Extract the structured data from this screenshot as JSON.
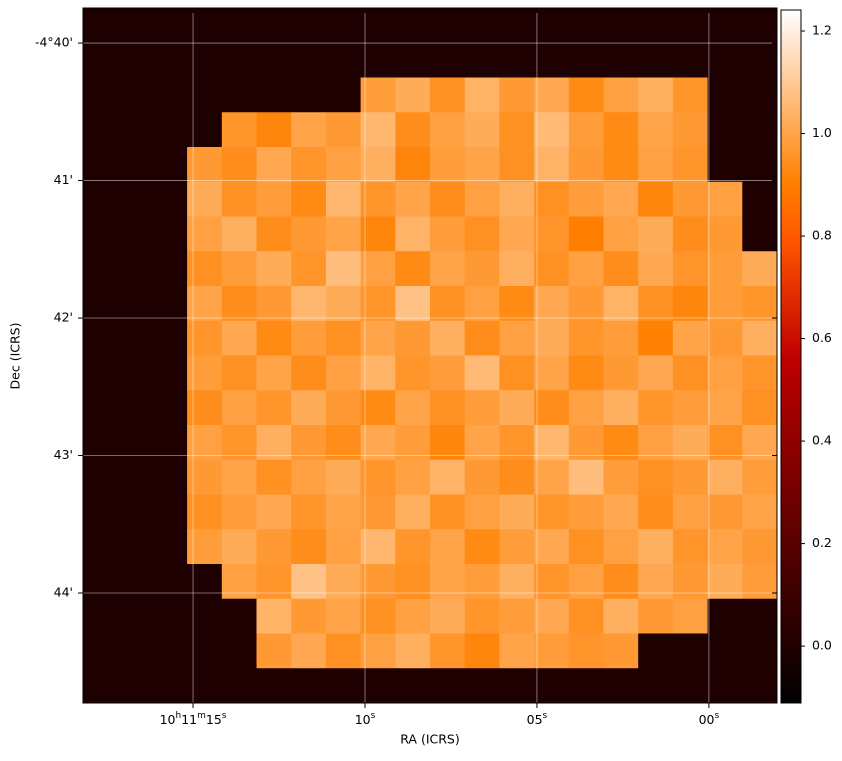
{
  "chart_data": {
    "type": "heatmap",
    "colormap": "gist_heat",
    "x_label": "RA (ICRS)",
    "y_label": "Dec (ICRS)",
    "xlim": [
      18.2,
      -1.98
    ],
    "xticks": [
      {
        "value": 15,
        "label": "10h11m15s"
      },
      {
        "value": 10,
        "label": "10s"
      },
      {
        "value": 5,
        "label": "05s"
      },
      {
        "value": 0,
        "label": "00s"
      }
    ],
    "ylim": [
      39.745,
      44.8
    ],
    "yticks": [
      {
        "value": 40,
        "label": "-4°40'"
      },
      {
        "value": 41,
        "label": "41'"
      },
      {
        "value": 42,
        "label": "42'"
      },
      {
        "value": 43,
        "label": "43'"
      },
      {
        "value": 44,
        "label": "44'"
      }
    ],
    "grid": true,
    "clim": [
      -0.111,
      1.241
    ],
    "cbticks": [
      {
        "value": 0,
        "label": "0.0"
      },
      0.2,
      0.4,
      0.6,
      0.8,
      {
        "value": 1,
        "label": "1.0"
      },
      1.2
    ],
    "z": [
      [
        0,
        0,
        0,
        0,
        0,
        0,
        0,
        0,
        0,
        0,
        0,
        0,
        0,
        0,
        0,
        0,
        0,
        0,
        0,
        0
      ],
      [
        0,
        0,
        0,
        0,
        0,
        0,
        0,
        0,
        0,
        0,
        0,
        0,
        0,
        0,
        0,
        0,
        0,
        0,
        0,
        0
      ],
      [
        0,
        0,
        0,
        0,
        0,
        0,
        0,
        0,
        0.98,
        1.02,
        0.95,
        1.04,
        0.97,
        1.01,
        0.93,
        0.99,
        1.03,
        0.96,
        0,
        0
      ],
      [
        0,
        0,
        0,
        0,
        0.96,
        0.92,
        1.0,
        0.97,
        1.05,
        0.94,
        0.99,
        1.02,
        0.95,
        1.06,
        0.98,
        0.93,
        1.0,
        0.97,
        0,
        0
      ],
      [
        0,
        0,
        0,
        0.97,
        0.94,
        1.01,
        0.96,
        0.99,
        1.03,
        0.92,
        0.98,
        1.0,
        0.95,
        1.04,
        0.97,
        0.93,
        0.99,
        0.96,
        0,
        0
      ],
      [
        0,
        0,
        0,
        1.02,
        0.95,
        0.98,
        0.93,
        1.05,
        0.96,
        1.0,
        0.94,
        0.99,
        1.03,
        0.95,
        0.98,
        1.01,
        0.92,
        0.97,
        0.99,
        0
      ],
      [
        0,
        0,
        0,
        0.99,
        1.03,
        0.94,
        0.97,
        1.0,
        0.92,
        1.04,
        0.98,
        0.95,
        1.01,
        0.96,
        0.9,
        0.99,
        1.02,
        0.94,
        0.97,
        0
      ],
      [
        0,
        0,
        0,
        0.95,
        0.98,
        1.02,
        0.96,
        1.07,
        0.99,
        0.93,
        1.0,
        0.97,
        1.03,
        0.95,
        0.99,
        0.94,
        1.01,
        0.96,
        0.98,
        1.02
      ],
      [
        0,
        0,
        0,
        1.0,
        0.94,
        0.97,
        1.05,
        1.02,
        0.96,
        1.08,
        0.95,
        0.99,
        0.93,
        1.01,
        0.97,
        1.04,
        0.95,
        0.92,
        0.98,
        0.96
      ],
      [
        0,
        0,
        0,
        0.96,
        1.01,
        0.93,
        0.98,
        0.95,
        1.0,
        0.97,
        1.03,
        0.94,
        0.99,
        1.02,
        0.96,
        0.98,
        0.91,
        1.0,
        0.97,
        1.03
      ],
      [
        0,
        0,
        0,
        0.98,
        0.95,
        1.0,
        0.94,
        0.99,
        1.04,
        0.96,
        0.98,
        1.06,
        0.95,
        1.0,
        0.93,
        0.97,
        1.01,
        0.95,
        0.99,
        0.96
      ],
      [
        0,
        0,
        0,
        0.94,
        0.99,
        0.96,
        1.02,
        0.97,
        0.93,
        1.0,
        0.95,
        0.98,
        1.02,
        0.94,
        0.99,
        1.03,
        0.96,
        0.98,
        1.0,
        0.95
      ],
      [
        0,
        0,
        0,
        0.99,
        0.96,
        1.03,
        0.97,
        0.94,
        1.01,
        0.98,
        0.92,
        1.0,
        0.96,
        1.05,
        0.97,
        0.93,
        0.99,
        1.02,
        0.95,
        1.01
      ],
      [
        0,
        0,
        0,
        0.97,
        1.0,
        0.95,
        0.99,
        1.02,
        0.96,
        0.99,
        1.04,
        0.97,
        0.94,
        1.0,
        1.07,
        0.98,
        0.95,
        0.97,
        1.03,
        0.98
      ],
      [
        0,
        0,
        0,
        0.95,
        0.98,
        1.01,
        0.96,
        1.0,
        0.97,
        1.03,
        0.95,
        0.99,
        1.02,
        0.96,
        0.98,
        1.01,
        0.94,
        0.99,
        0.97,
        1.0
      ],
      [
        0,
        0,
        0,
        0.98,
        1.02,
        0.97,
        0.94,
        0.99,
        1.05,
        0.96,
        1.0,
        0.93,
        0.98,
        1.01,
        0.95,
        0.99,
        1.03,
        0.96,
        1.0,
        0.97
      ],
      [
        0,
        0,
        0,
        0,
        0.99,
        0.96,
        1.08,
        1.02,
        0.97,
        0.95,
        1.0,
        0.98,
        1.03,
        0.96,
        0.99,
        0.94,
        1.01,
        0.97,
        1.02,
        0.98
      ],
      [
        0,
        0,
        0,
        0,
        0,
        1.04,
        0.97,
        1.0,
        0.95,
        0.99,
        1.02,
        0.96,
        0.98,
        1.01,
        0.95,
        1.03,
        0.97,
        0.99,
        0,
        0
      ],
      [
        0,
        0,
        0,
        0,
        0,
        0.97,
        1.01,
        0.95,
        0.99,
        1.03,
        0.96,
        0.92,
        1.0,
        0.98,
        0.96,
        0.97,
        0,
        0,
        0,
        0
      ],
      [
        0,
        0,
        0,
        0,
        0,
        0,
        0,
        0,
        0,
        0,
        0,
        0,
        0,
        0,
        0,
        0,
        0,
        0,
        0,
        0
      ]
    ]
  }
}
